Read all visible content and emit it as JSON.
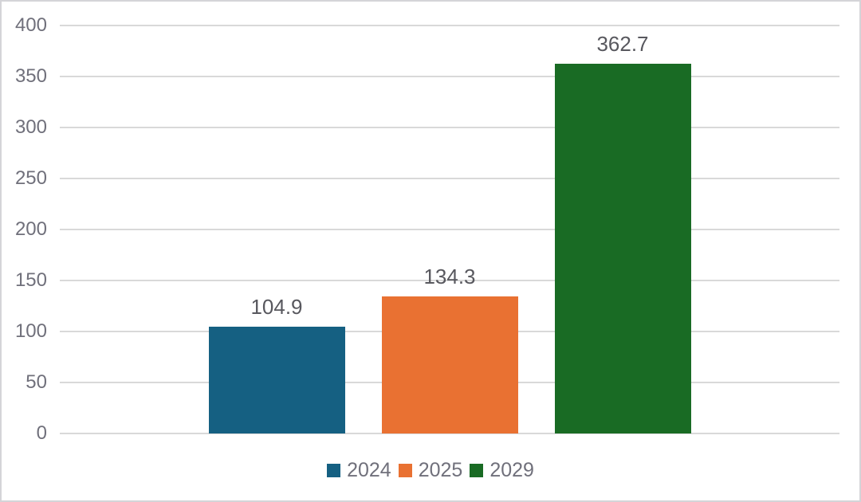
{
  "chart_data": {
    "type": "bar",
    "title": "",
    "categories": [
      ""
    ],
    "series": [
      {
        "name": "2024",
        "value": 104.9,
        "label": "104.9",
        "color": "#156082"
      },
      {
        "name": "2025",
        "value": 134.3,
        "label": "134.3",
        "color": "#E97132"
      },
      {
        "name": "2029",
        "value": 362.7,
        "label": "362.7",
        "color": "#196B24"
      }
    ],
    "ylim": [
      0,
      400
    ],
    "ytick_interval": 50,
    "ytick_labels": [
      "0",
      "50",
      "100",
      "150",
      "200",
      "250",
      "300",
      "350",
      "400"
    ],
    "grid": true,
    "legend_position": "bottom",
    "legend_entries": [
      "2024",
      "2025",
      "2029"
    ]
  },
  "colors": {
    "background": "#FFFFFF",
    "frame_border": "#D4D4D8",
    "gridline": "#D9D9D9",
    "axis_text": "#70707B",
    "value_label_text": "#58585E",
    "legend_text": "#70707B"
  }
}
